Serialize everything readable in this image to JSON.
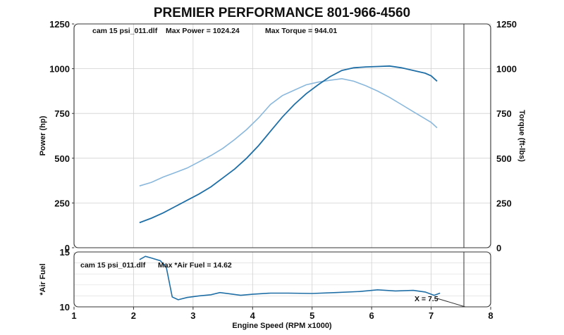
{
  "header_title": "PREMIER PERFORMANCE 801-966-4560",
  "chart_data": [
    {
      "type": "line",
      "run_label": "cam 15 psi_011.dlf",
      "annotations": [
        "Max Power = 1024.24",
        "Max Torque = 944.01"
      ],
      "xlabel": "",
      "ylabel": "Power (hp)",
      "ylabel_right": "Torque (ft-lbs)",
      "xlim": [
        1,
        8
      ],
      "ylim": [
        0,
        1250
      ],
      "yticks": [
        "0",
        "250",
        "500",
        "750",
        "1000",
        "1250"
      ],
      "grid": true,
      "marker_x": 7.55,
      "colors": {
        "power": "#1f6fa6",
        "torque": "#8ab8dc"
      },
      "series": [
        {
          "key": "power",
          "x": [
            2.1,
            2.3,
            2.5,
            2.7,
            2.9,
            3.1,
            3.3,
            3.5,
            3.7,
            3.9,
            4.1,
            4.3,
            4.5,
            4.7,
            4.9,
            5.1,
            5.3,
            5.5,
            5.7,
            5.9,
            6.1,
            6.3,
            6.5,
            6.7,
            6.9,
            7.0,
            7.1
          ],
          "values": [
            140,
            165,
            195,
            230,
            265,
            300,
            340,
            390,
            440,
            500,
            570,
            650,
            730,
            800,
            860,
            910,
            955,
            990,
            1005,
            1010,
            1012,
            1015,
            1005,
            990,
            975,
            960,
            930
          ]
        },
        {
          "key": "torque",
          "x": [
            2.1,
            2.3,
            2.5,
            2.7,
            2.9,
            3.1,
            3.3,
            3.5,
            3.7,
            3.9,
            4.1,
            4.3,
            4.5,
            4.7,
            4.9,
            5.1,
            5.3,
            5.5,
            5.7,
            5.9,
            6.1,
            6.3,
            6.5,
            6.7,
            6.9,
            7.0,
            7.1
          ],
          "values": [
            345,
            365,
            395,
            420,
            445,
            480,
            515,
            555,
            605,
            660,
            725,
            800,
            850,
            880,
            910,
            925,
            935,
            944,
            930,
            905,
            875,
            840,
            800,
            760,
            720,
            700,
            670
          ]
        }
      ]
    },
    {
      "type": "line",
      "run_label": "cam 15 psi_011.dlf",
      "annotations": [
        "Max *Air Fuel = 14.62"
      ],
      "cursor_label": "X = 7.5",
      "xlabel": "Engine Speed (RPM x1000)",
      "ylabel": "*Air Fuel",
      "xlim": [
        1,
        8
      ],
      "ylim": [
        10,
        15
      ],
      "xticks": [
        "1",
        "2",
        "3",
        "4",
        "5",
        "6",
        "7",
        "8"
      ],
      "yticks": [
        "10",
        "15"
      ],
      "grid": true,
      "marker_x": 7.55,
      "colors": {
        "air_fuel": "#1f6fa6"
      },
      "series": [
        {
          "key": "air_fuel",
          "x": [
            2.1,
            2.2,
            2.3,
            2.45,
            2.55,
            2.65,
            2.75,
            2.9,
            3.1,
            3.3,
            3.45,
            3.6,
            3.8,
            4.0,
            4.3,
            4.6,
            5.0,
            5.4,
            5.8,
            6.1,
            6.4,
            6.7,
            6.9,
            7.05,
            7.15
          ],
          "values": [
            14.3,
            14.6,
            14.45,
            14.2,
            13.6,
            10.9,
            10.65,
            10.85,
            11.0,
            11.1,
            11.3,
            11.2,
            11.05,
            11.15,
            11.25,
            11.25,
            11.22,
            11.3,
            11.4,
            11.55,
            11.45,
            11.5,
            11.35,
            11.05,
            11.25
          ]
        }
      ]
    }
  ]
}
